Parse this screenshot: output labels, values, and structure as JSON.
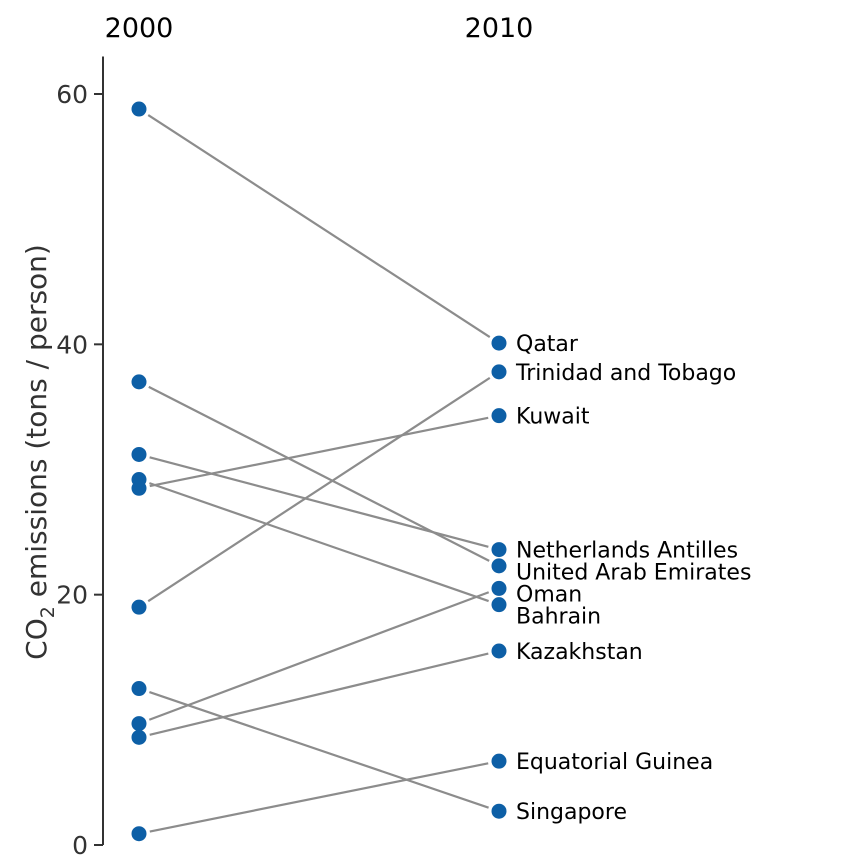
{
  "chart_data": {
    "type": "line",
    "subtype": "slopegraph",
    "x": [
      "2000",
      "2010"
    ],
    "ylabel": "CO2 emissions (tons / person)",
    "ylabel_main": "CO",
    "ylabel_sub": "2",
    "ylabel_rest": " emissions (tons / person)",
    "ylim": [
      0,
      63
    ],
    "yticks": [
      0,
      20,
      40,
      60
    ],
    "ytick_labels": [
      "0",
      "20",
      "40",
      "60"
    ],
    "grid": false,
    "legend": "none",
    "series": [
      {
        "name": "Qatar",
        "values": [
          58.8,
          40.1
        ]
      },
      {
        "name": "Trinidad and Tobago",
        "values": [
          19.0,
          37.8
        ]
      },
      {
        "name": "Kuwait",
        "values": [
          28.5,
          34.3
        ]
      },
      {
        "name": "Netherlands Antilles",
        "values": [
          31.2,
          23.6
        ]
      },
      {
        "name": "United Arab Emirates",
        "values": [
          37.0,
          22.3
        ]
      },
      {
        "name": "Oman",
        "values": [
          9.7,
          20.5
        ]
      },
      {
        "name": "Bahrain",
        "values": [
          29.2,
          19.2
        ]
      },
      {
        "name": "Kazakhstan",
        "values": [
          8.6,
          15.5
        ]
      },
      {
        "name": "Equatorial Guinea",
        "values": [
          0.9,
          6.7
        ]
      },
      {
        "name": "Singapore",
        "values": [
          12.5,
          2.7
        ]
      }
    ],
    "colors": {
      "point": "#0d5fa6",
      "line": "#8c8c8c",
      "axis": "#333333"
    }
  }
}
